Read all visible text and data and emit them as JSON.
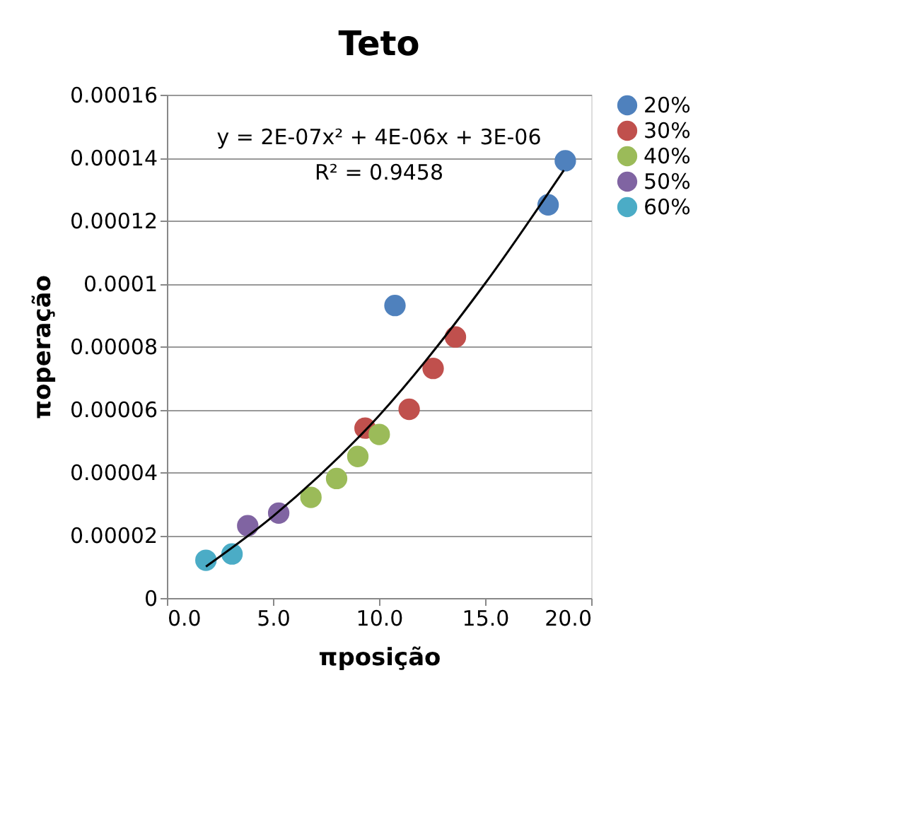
{
  "chart_data": {
    "type": "scatter",
    "title": "Teto",
    "xlabel": "πposição",
    "ylabel": "πoperação",
    "annotations": [
      "y = 2E-07x² + 4E-06x + 3E-06",
      "R² = 0.9458"
    ],
    "xlim": [
      0,
      20
    ],
    "xticks": [
      {
        "value": 0,
        "label": "0.0"
      },
      {
        "value": 5,
        "label": "5.0"
      },
      {
        "value": 10,
        "label": "10.0"
      },
      {
        "value": 15,
        "label": "15.0"
      },
      {
        "value": 20,
        "label": "20.0"
      }
    ],
    "ylim": [
      0,
      0.00016
    ],
    "yticks": [
      0,
      {
        "value": 2e-05,
        "label": "0.00002"
      },
      {
        "value": 4e-05,
        "label": "0.00004"
      },
      {
        "value": 6e-05,
        "label": "0.00006"
      },
      {
        "value": 8e-05,
        "label": "0.00008"
      },
      0.0001,
      0.00012,
      0.00014,
      0.00016
    ],
    "grid": "y",
    "legend": "right",
    "marker": "circle",
    "series": [
      {
        "name": "20%",
        "color": "#4f81bd",
        "x": [
          10.75,
          17.97,
          18.78
        ],
        "values": [
          9.3e-05,
          0.000125,
          0.000139
        ]
      },
      {
        "name": "30%",
        "color": "#c0504d",
        "x": [
          9.34,
          11.42,
          12.55,
          13.6
        ],
        "values": [
          5.4e-05,
          6e-05,
          7.3e-05,
          8.3e-05
        ]
      },
      {
        "name": "40%",
        "color": "#9bbb59",
        "x": [
          6.79,
          8.0,
          9.0,
          10.01
        ],
        "values": [
          3.2e-05,
          3.8e-05,
          4.5e-05,
          5.2e-05
        ]
      },
      {
        "name": "50%",
        "color": "#8064a2",
        "x": [
          3.81,
          5.27
        ],
        "values": [
          2.3e-05,
          2.7e-05
        ]
      },
      {
        "name": "60%",
        "color": "#4bacc6",
        "x": [
          1.84,
          3.07
        ],
        "values": [
          1.2e-05,
          1.4e-05
        ]
      },
      {
        "type": "line",
        "color": "#000000",
        "line_style": "solid",
        "marker": "none",
        "x": [
          1.84,
          5,
          10,
          15,
          18.71
        ],
        "values": [
          1e-05,
          2.6e-05,
          5.8e-05,
          0.0001,
          0.000136
        ]
      }
    ]
  }
}
